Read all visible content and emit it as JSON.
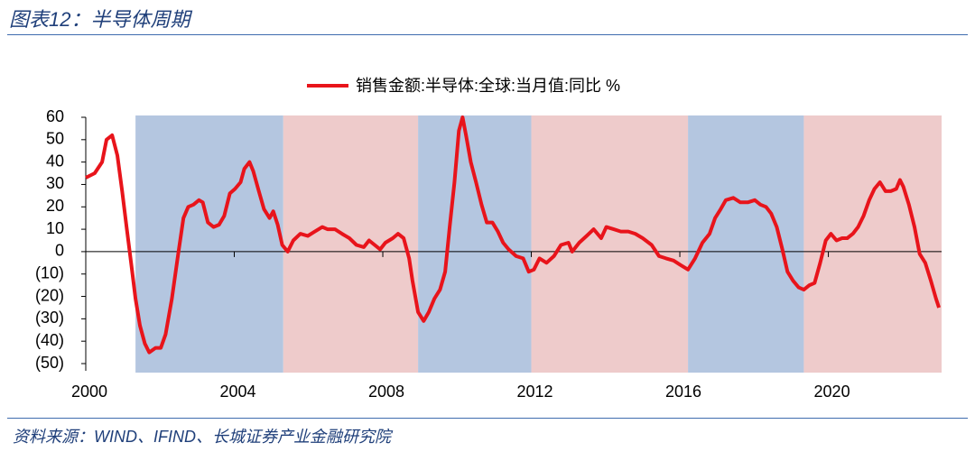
{
  "header": {
    "title": "图表12：半导体周期"
  },
  "footer": {
    "source": "资料来源：WIND、IFIND、长城证券产业金融研究院"
  },
  "chart_data": {
    "type": "line",
    "xlim": [
      2000,
      2023.05
    ],
    "xticks": [
      2000,
      2004,
      2008,
      2012,
      2016,
      2020
    ],
    "ylim": [
      -50,
      60
    ],
    "yticks": [
      {
        "value": -50,
        "label": "(50)"
      },
      {
        "value": -40,
        "label": "(40)"
      },
      {
        "value": -30,
        "label": "(30)"
      },
      {
        "value": -20,
        "label": "(20)"
      },
      {
        "value": -10,
        "label": "(10)"
      },
      0,
      10,
      20,
      30,
      40,
      50,
      60
    ],
    "negative_tick_color": "#e00000",
    "legend": "top",
    "bands": [
      {
        "start": 2001.34,
        "end": 2005.32,
        "color": "#b4c6e0"
      },
      {
        "start": 2005.32,
        "end": 2008.95,
        "color": "#eecbcb"
      },
      {
        "start": 2008.95,
        "end": 2012.0,
        "color": "#b4c6e0"
      },
      {
        "start": 2012.0,
        "end": 2016.22,
        "color": "#eecbcb"
      },
      {
        "start": 2016.22,
        "end": 2019.34,
        "color": "#b4c6e0"
      },
      {
        "start": 2019.34,
        "end": 2023.05,
        "color": "#eecbcb"
      }
    ],
    "x": [
      2000.0,
      2000.24,
      2000.44,
      2000.56,
      2000.71,
      2000.85,
      2000.98,
      2001.1,
      2001.22,
      2001.34,
      2001.46,
      2001.59,
      2001.71,
      2001.88,
      2002.02,
      2002.15,
      2002.32,
      2002.49,
      2002.63,
      2002.76,
      2002.9,
      2003.05,
      2003.15,
      2003.29,
      2003.44,
      2003.59,
      2003.73,
      2003.88,
      2004.02,
      2004.17,
      2004.27,
      2004.41,
      2004.51,
      2004.66,
      2004.8,
      2004.95,
      2005.05,
      2005.17,
      2005.29,
      2005.44,
      2005.59,
      2005.78,
      2005.98,
      2006.17,
      2006.37,
      2006.51,
      2006.71,
      2006.9,
      2007.1,
      2007.29,
      2007.49,
      2007.63,
      2007.78,
      2007.93,
      2008.07,
      2008.27,
      2008.41,
      2008.56,
      2008.71,
      2008.8,
      2008.95,
      2009.1,
      2009.24,
      2009.39,
      2009.54,
      2009.68,
      2009.8,
      2009.93,
      2010.05,
      2010.15,
      2010.24,
      2010.37,
      2010.51,
      2010.66,
      2010.8,
      2010.95,
      2011.1,
      2011.24,
      2011.39,
      2011.59,
      2011.78,
      2011.93,
      2012.07,
      2012.22,
      2012.41,
      2012.61,
      2012.8,
      2013.0,
      2013.1,
      2013.29,
      2013.49,
      2013.68,
      2013.88,
      2014.02,
      2014.22,
      2014.41,
      2014.61,
      2014.8,
      2015.0,
      2015.24,
      2015.44,
      2015.63,
      2015.83,
      2016.02,
      2016.22,
      2016.41,
      2016.61,
      2016.8,
      2016.95,
      2017.1,
      2017.24,
      2017.44,
      2017.63,
      2017.83,
      2018.02,
      2018.17,
      2018.32,
      2018.46,
      2018.61,
      2018.76,
      2018.9,
      2019.05,
      2019.2,
      2019.34,
      2019.49,
      2019.63,
      2019.78,
      2019.93,
      2020.07,
      2020.22,
      2020.37,
      2020.51,
      2020.66,
      2020.8,
      2020.95,
      2021.1,
      2021.24,
      2021.39,
      2021.54,
      2021.68,
      2021.83,
      2021.93,
      2022.02,
      2022.17,
      2022.32,
      2022.46,
      2022.61,
      2022.76,
      2022.9,
      2022.98
    ],
    "series": [
      {
        "name": "销售金额:半导体:全球:当月值:同比 %",
        "color": "#e8141b",
        "values": [
          33,
          35,
          40,
          50,
          52,
          43,
          27,
          11,
          -5,
          -21,
          -33,
          -41,
          -45,
          -43,
          -43,
          -37,
          -21,
          -1,
          15,
          20,
          21,
          23,
          22,
          13,
          11,
          12,
          16,
          26,
          28,
          31,
          37,
          40,
          36,
          27,
          19,
          15,
          18,
          12,
          3,
          0,
          5,
          8,
          7,
          9,
          11,
          10,
          10,
          8,
          6,
          3,
          2,
          5,
          3,
          1,
          4,
          6,
          8,
          6,
          -3,
          -13,
          -27,
          -31,
          -27,
          -21,
          -17,
          -9,
          11,
          31,
          54,
          60,
          52,
          40,
          31,
          21,
          13,
          13,
          9,
          4,
          1,
          -2,
          -3,
          -9,
          -8,
          -3,
          -5,
          -2,
          3,
          4,
          0,
          4,
          7,
          10,
          6,
          11,
          10,
          9,
          9,
          8,
          6,
          3,
          -2,
          -3,
          -4,
          -6,
          -8,
          -3,
          4,
          8,
          15,
          19,
          23,
          24,
          22,
          22,
          23,
          21,
          20,
          17,
          11,
          1,
          -9,
          -13,
          -16,
          -17,
          -15,
          -14,
          -5,
          5,
          8,
          5,
          6,
          6,
          8,
          11,
          16,
          23,
          28,
          31,
          27,
          27,
          28,
          32,
          29,
          21,
          11,
          -1,
          -5,
          -13,
          -21,
          -25
        ]
      }
    ]
  }
}
